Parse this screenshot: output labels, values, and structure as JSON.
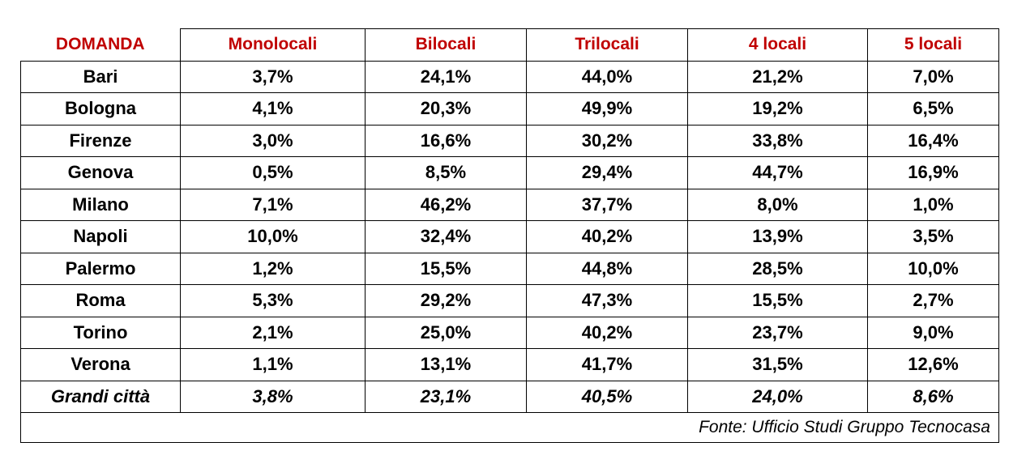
{
  "table": {
    "header": [
      "DOMANDA",
      "Monolocali",
      "Bilocali",
      "Trilocali",
      "4 locali",
      "5 locali"
    ],
    "rows": [
      [
        "Bari",
        "3,7%",
        "24,1%",
        "44,0%",
        "21,2%",
        "7,0%"
      ],
      [
        "Bologna",
        "4,1%",
        "20,3%",
        "49,9%",
        "19,2%",
        "6,5%"
      ],
      [
        "Firenze",
        "3,0%",
        "16,6%",
        "30,2%",
        "33,8%",
        "16,4%"
      ],
      [
        "Genova",
        "0,5%",
        "8,5%",
        "29,4%",
        "44,7%",
        "16,9%"
      ],
      [
        "Milano",
        "7,1%",
        "46,2%",
        "37,7%",
        "8,0%",
        "1,0%"
      ],
      [
        "Napoli",
        "10,0%",
        "32,4%",
        "40,2%",
        "13,9%",
        "3,5%"
      ],
      [
        "Palermo",
        "1,2%",
        "15,5%",
        "44,8%",
        "28,5%",
        "10,0%"
      ],
      [
        "Roma",
        "5,3%",
        "29,2%",
        "47,3%",
        "15,5%",
        "2,7%"
      ],
      [
        "Torino",
        "2,1%",
        "25,0%",
        "40,2%",
        "23,7%",
        "9,0%"
      ],
      [
        "Verona",
        "1,1%",
        "13,1%",
        "41,7%",
        "31,5%",
        "12,6%"
      ],
      [
        "Grandi città",
        "3,8%",
        "23,1%",
        "40,5%",
        "24,0%",
        "8,6%"
      ]
    ],
    "footer": "Fonte: Ufficio Studi Gruppo Tecnocasa"
  }
}
